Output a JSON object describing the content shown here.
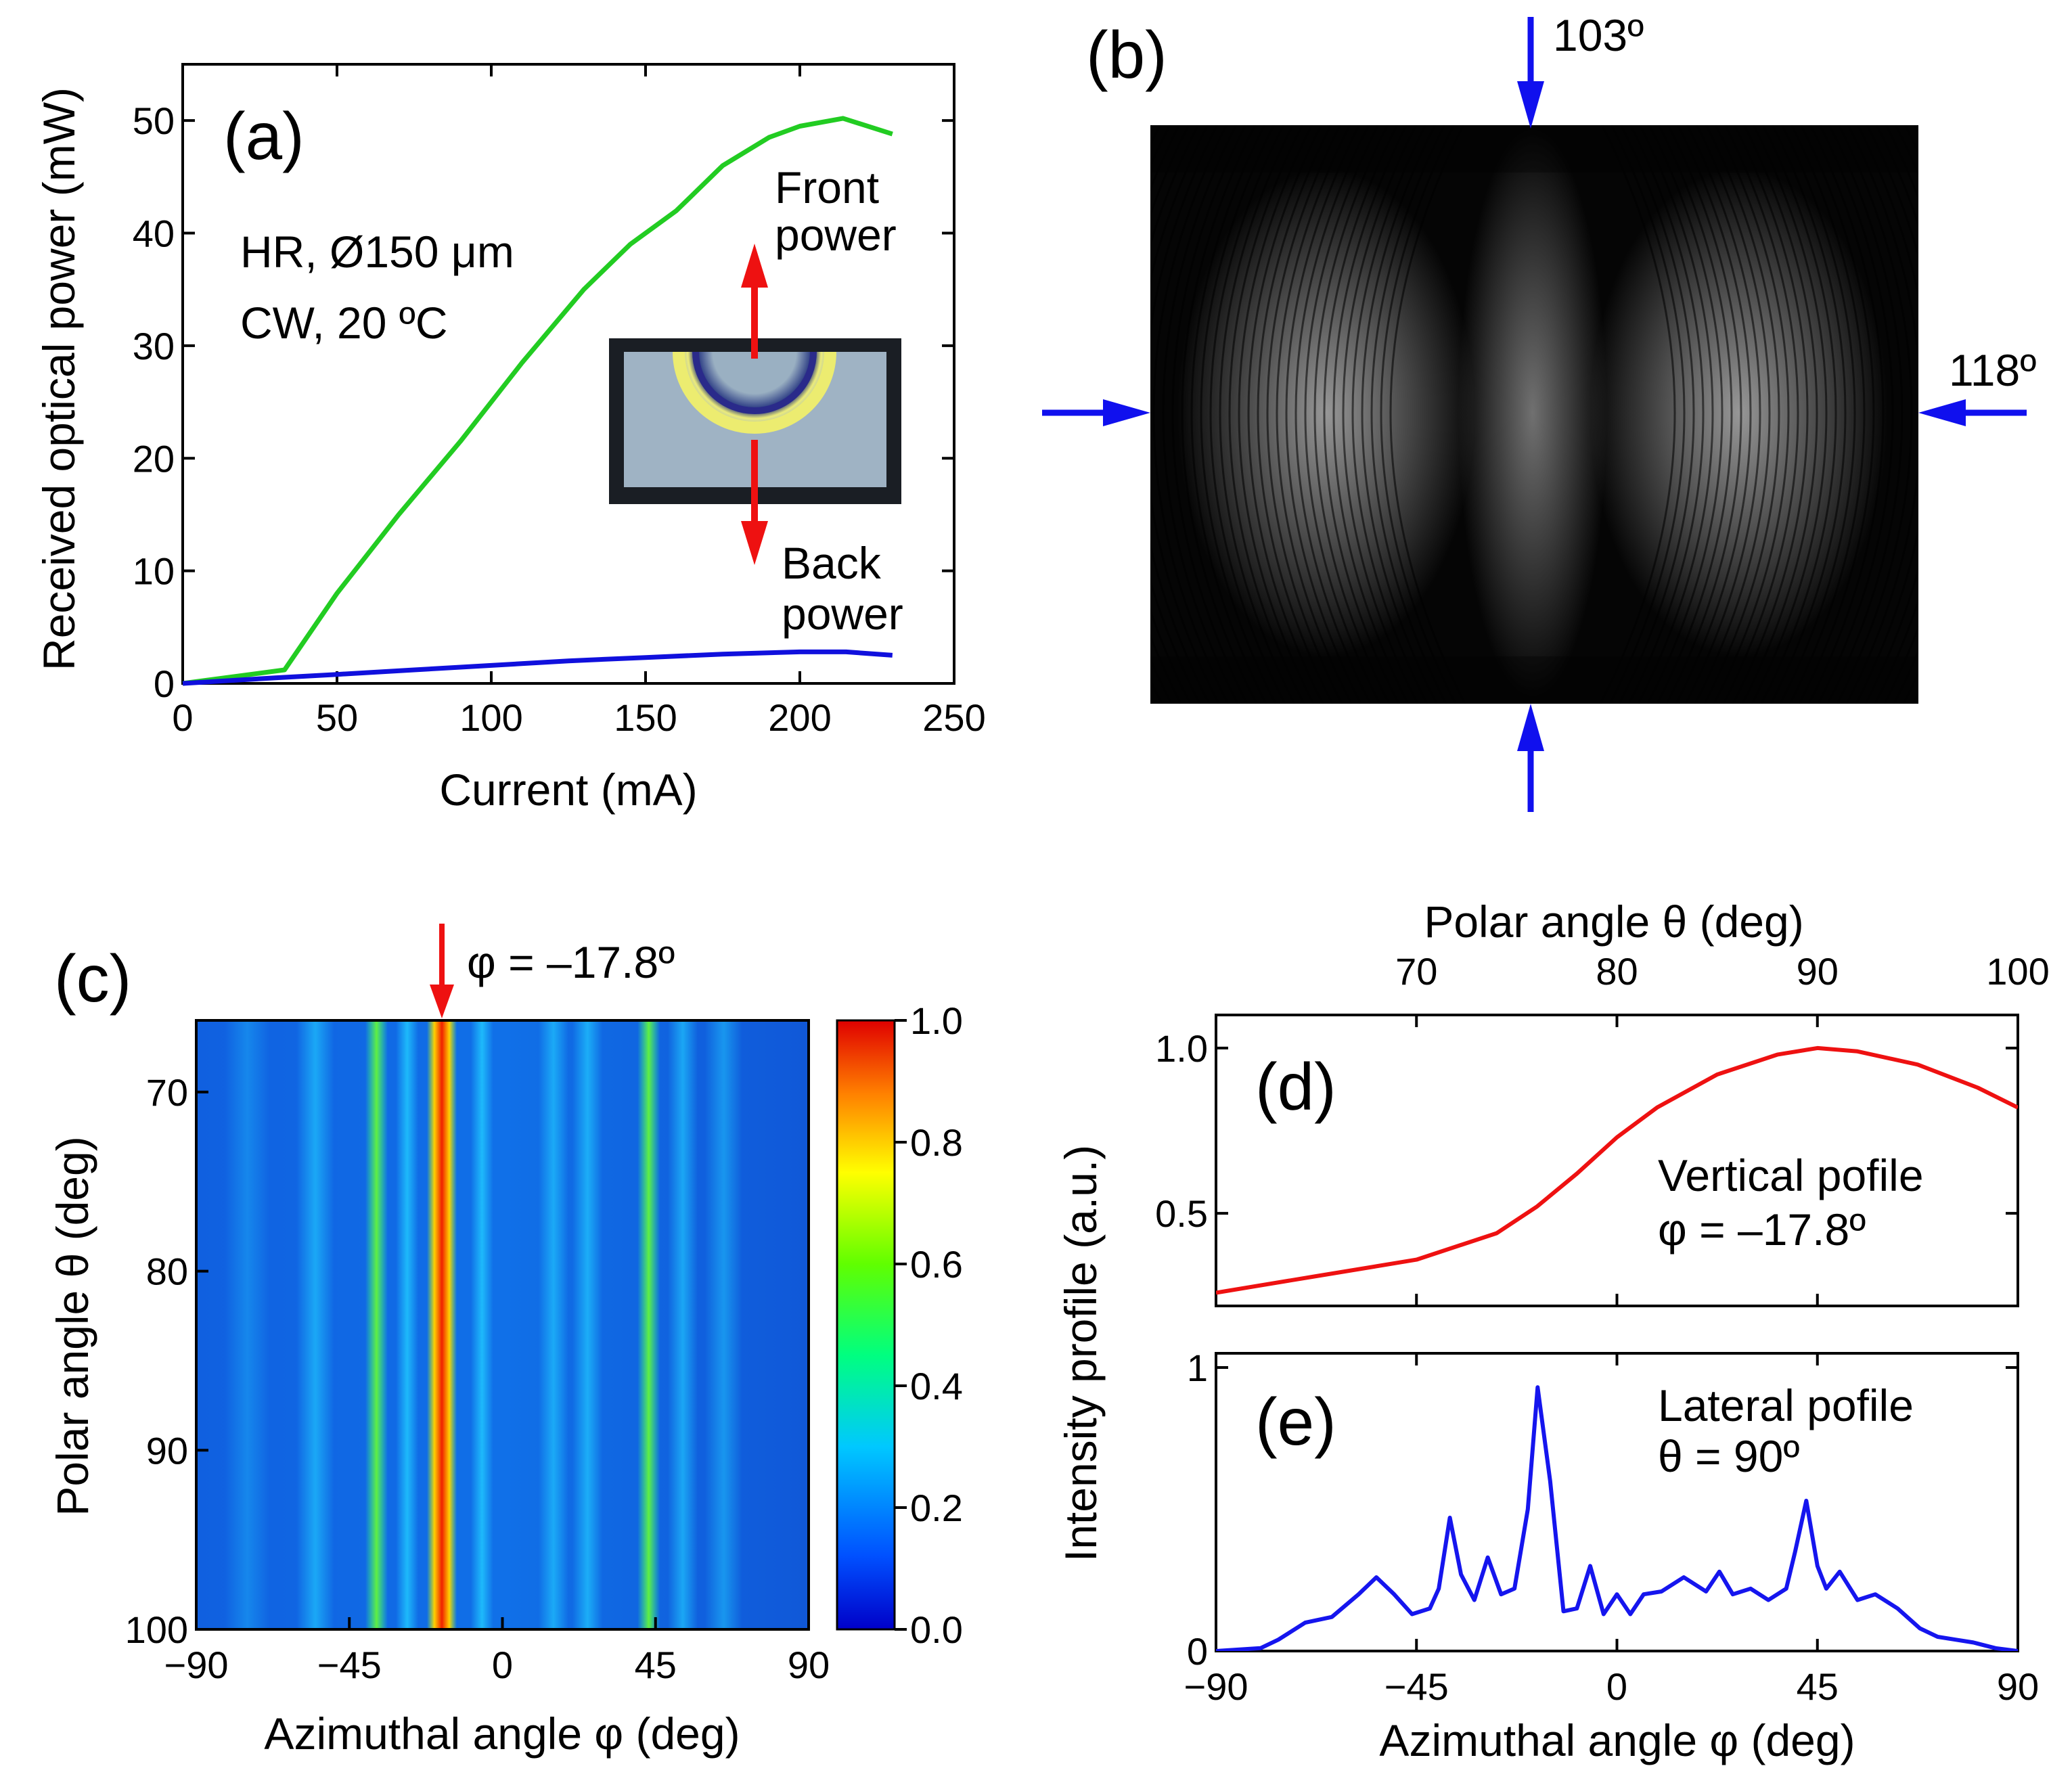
{
  "chart_data": [
    {
      "panel": "(a)",
      "type": "line",
      "xlabel": "Current (mA)",
      "ylabel": "Received optical power (mW)",
      "xlim": [
        0,
        250
      ],
      "ylim": [
        0,
        55
      ],
      "xticks": [
        0,
        50,
        100,
        150,
        200,
        250
      ],
      "yticks": [
        0,
        10,
        20,
        30,
        40,
        50
      ],
      "annotations": [
        "HR, Ø150 μm",
        "CW, 20 ºC",
        "Front",
        "power",
        "Back",
        "power"
      ],
      "series": [
        {
          "name": "Front power",
          "color": "#22cc22",
          "x": [
            0,
            33,
            50,
            70,
            90,
            110,
            130,
            145,
            160,
            175,
            190,
            200,
            214,
            230
          ],
          "y": [
            0,
            1.2,
            8,
            15,
            21.5,
            28.5,
            35,
            39,
            42,
            46,
            48.5,
            49.5,
            50.2,
            48.8
          ]
        },
        {
          "name": "Back power",
          "color": "#1010dd",
          "x": [
            0,
            30,
            50,
            75,
            100,
            125,
            150,
            175,
            200,
            215,
            230
          ],
          "y": [
            0,
            0.5,
            0.8,
            1.2,
            1.6,
            2.0,
            2.3,
            2.6,
            2.8,
            2.8,
            2.5
          ]
        }
      ]
    },
    {
      "panel": "(b)",
      "type": "image",
      "annotations": [
        "103º",
        "118º"
      ]
    },
    {
      "panel": "(c)",
      "type": "heatmap",
      "xlabel": "Azimuthal angle φ (deg)",
      "ylabel": "Polar angle θ (deg)",
      "xlim": [
        -90,
        90
      ],
      "ylim": [
        66,
        100
      ],
      "xticks": [
        -90,
        -45,
        0,
        45,
        90
      ],
      "yticks": [
        70,
        80,
        90,
        100
      ],
      "marker_label": "φ = –17.8º",
      "colorbar": {
        "min": 0,
        "max": 1,
        "ticks": [
          "0.0",
          "0.2",
          "0.4",
          "0.6",
          "0.8",
          "1.0"
        ]
      },
      "lateral_peaks": [
        {
          "phi": -17.8,
          "intensity": 0.93,
          "width": 4
        },
        {
          "phi": -37,
          "intensity": 0.55,
          "width": 3
        },
        {
          "phi": 43,
          "intensity": 0.52,
          "width": 3
        },
        {
          "phi": -55,
          "intensity": 0.28,
          "width": 5
        },
        {
          "phi": -28,
          "intensity": 0.35,
          "width": 3
        },
        {
          "phi": -6,
          "intensity": 0.35,
          "width": 3
        },
        {
          "phi": 15,
          "intensity": 0.28,
          "width": 4
        },
        {
          "phi": 25,
          "intensity": 0.3,
          "width": 4
        },
        {
          "phi": 53,
          "intensity": 0.28,
          "width": 4
        },
        {
          "phi": 65,
          "intensity": 0.22,
          "width": 5
        },
        {
          "phi": -75,
          "intensity": 0.15,
          "width": 6
        }
      ]
    },
    {
      "panel": "(d)",
      "type": "line",
      "xlabel": "Polar angle θ (deg)",
      "ylabel": "Intensity profile (a.u.)",
      "xlim": [
        60,
        100
      ],
      "ylim": [
        0.22,
        1.1
      ],
      "xticks": [
        70,
        80,
        90,
        100
      ],
      "yticks": [
        0.5,
        1.0
      ],
      "ytick_labels": [
        "0.5",
        "1.0"
      ],
      "annotations": [
        "Vertical pofile",
        "φ = –17.8º"
      ],
      "series": [
        {
          "name": "Vertical profile",
          "color": "#ee1111",
          "x": [
            60,
            65,
            70,
            74,
            76,
            78,
            80,
            82,
            85,
            88,
            90,
            92,
            95,
            98,
            100
          ],
          "y": [
            0.26,
            0.31,
            0.36,
            0.44,
            0.52,
            0.62,
            0.73,
            0.82,
            0.92,
            0.98,
            1.0,
            0.99,
            0.95,
            0.88,
            0.82
          ]
        }
      ]
    },
    {
      "panel": "(e)",
      "type": "line",
      "xlabel": "Azimuthal angle φ (deg)",
      "ylabel": "Intensity profile (a.u.)",
      "xlim": [
        -90,
        90
      ],
      "ylim": [
        0,
        1.05
      ],
      "xticks": [
        -90,
        -45,
        0,
        45,
        90
      ],
      "yticks": [
        0,
        1
      ],
      "annotations": [
        "Lateral pofile",
        "θ = 90º"
      ],
      "series": [
        {
          "name": "Lateral profile",
          "color": "#1515ee",
          "x": [
            -90,
            -80,
            -76,
            -70,
            -64,
            -58,
            -54,
            -50,
            -46,
            -42,
            -40,
            -37.5,
            -35,
            -32,
            -29,
            -26,
            -23,
            -20,
            -17.8,
            -15,
            -12,
            -9,
            -6,
            -3,
            0,
            3,
            6,
            10,
            15,
            20,
            23,
            26,
            30,
            34,
            38,
            40,
            42.5,
            45,
            47,
            50,
            54,
            58,
            63,
            68,
            72,
            76,
            80,
            85,
            90
          ],
          "y": [
            0,
            0.01,
            0.04,
            0.1,
            0.12,
            0.2,
            0.26,
            0.2,
            0.13,
            0.15,
            0.22,
            0.47,
            0.27,
            0.18,
            0.33,
            0.2,
            0.22,
            0.5,
            0.93,
            0.6,
            0.14,
            0.15,
            0.3,
            0.13,
            0.2,
            0.13,
            0.2,
            0.21,
            0.26,
            0.21,
            0.28,
            0.2,
            0.22,
            0.18,
            0.22,
            0.35,
            0.53,
            0.3,
            0.22,
            0.28,
            0.18,
            0.2,
            0.15,
            0.08,
            0.05,
            0.04,
            0.03,
            0.01,
            0
          ]
        }
      ]
    }
  ],
  "labels": {
    "a": "(a)",
    "b": "(b)",
    "c": "(c)",
    "d": "(d)",
    "e": "(e)"
  },
  "colors": {
    "axis": "#000000",
    "arrow_blue": "#1010ee",
    "arrow_red": "#ee1111"
  }
}
